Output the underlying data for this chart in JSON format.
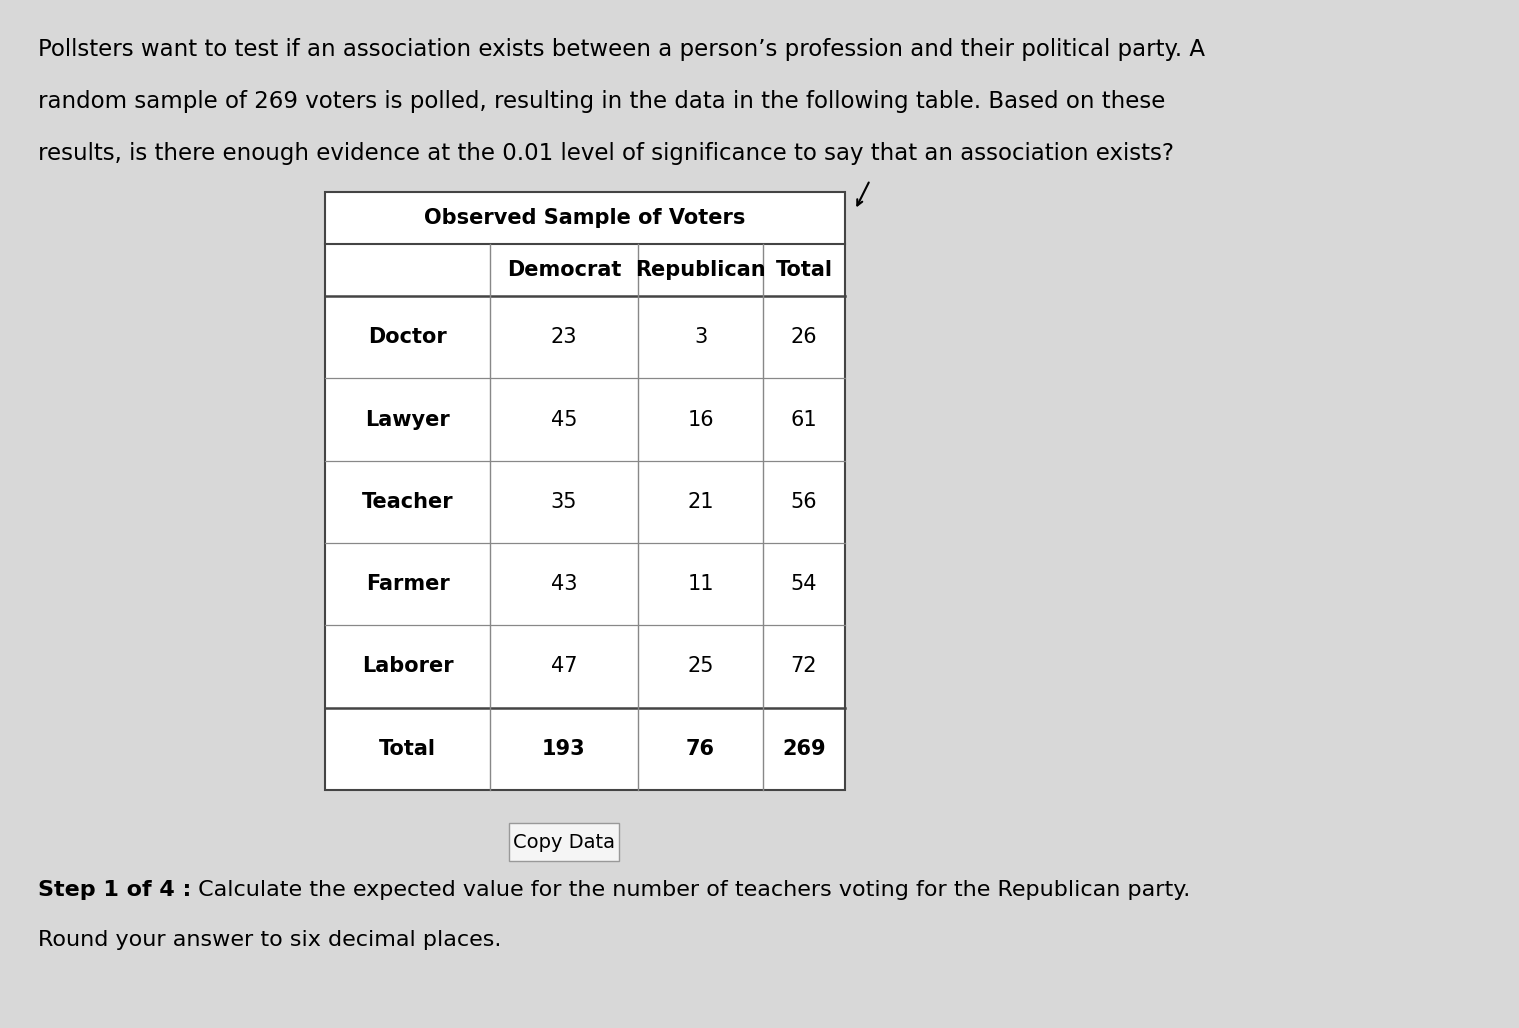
{
  "background_color": "#d8d8d8",
  "table_bg": "#ffffff",
  "paragraph_text_line1": "Pollsters want to test if an association exists between a person’s profession and their political party. A",
  "paragraph_text_line2": "random sample of 269 voters is polled, resulting in the data in the following table. Based on these",
  "paragraph_text_line3": "results, is there enough evidence at the 0.01 level of significance to say that an association exists?",
  "table_title": "Observed Sample of Voters",
  "col_headers": [
    "",
    "Democrat",
    "Republican",
    "Total"
  ],
  "rows": [
    [
      "Doctor",
      "23",
      "3",
      "26"
    ],
    [
      "Lawyer",
      "45",
      "16",
      "61"
    ],
    [
      "Teacher",
      "35",
      "21",
      "56"
    ],
    [
      "Farmer",
      "43",
      "11",
      "54"
    ],
    [
      "Laborer",
      "47",
      "25",
      "72"
    ],
    [
      "Total",
      "193",
      "76",
      "269"
    ]
  ],
  "copy_button_text": "Copy Data",
  "step_text_bold": "Step 1 of 4 :",
  "step_text_normal": " Calculate the expected value for the number of teachers voting for the Republican party.",
  "step_text_line2": "Round your answer to six decimal places.",
  "para_fontsize": 16.5,
  "table_title_fontsize": 15,
  "col_header_fontsize": 15,
  "cell_fontsize": 15,
  "step_fontsize": 16,
  "copy_button_fontsize": 14
}
